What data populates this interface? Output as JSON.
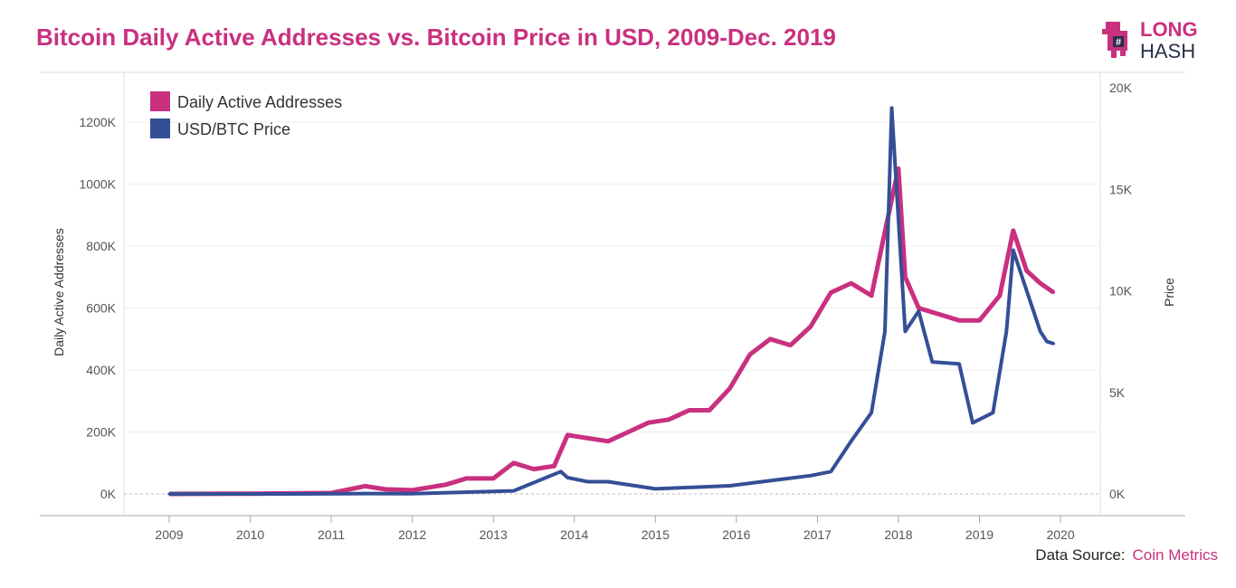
{
  "title": "Bitcoin Daily Active Addresses vs. Bitcoin Price in USD, 2009-Dec. 2019",
  "logo": {
    "line1": "LONG",
    "line2": "HASH"
  },
  "source": {
    "label": "Data Source:",
    "name": "Coin Metrics"
  },
  "colors": {
    "addresses": "#c9307f",
    "price": "#354f96",
    "title": "#c9307f"
  },
  "chart_data": {
    "type": "line",
    "ylabel": "Daily Active Addresses",
    "y2label": "Price",
    "xlim": [
      2009,
      2020
    ],
    "ylim": [
      0,
      1300
    ],
    "y2lim": [
      0,
      20000
    ],
    "x_ticks": [
      "2009",
      "2010",
      "2011",
      "2012",
      "2013",
      "2014",
      "2015",
      "2016",
      "2017",
      "2018",
      "2019",
      "2020"
    ],
    "y_ticks": [
      "0K",
      "200K",
      "400K",
      "600K",
      "800K",
      "1000K",
      "1200K"
    ],
    "y2_ticks": [
      "0K",
      "5K",
      "10K",
      "15K",
      "20K"
    ],
    "grid": true,
    "legend": "top-left",
    "series": [
      {
        "name": "Daily Active Addresses",
        "axis": "left",
        "unit": "K",
        "x": [
          "2009-01",
          "2010-01",
          "2011-01",
          "2011-06",
          "2011-09",
          "2012-01",
          "2012-06",
          "2012-09",
          "2013-01",
          "2013-04",
          "2013-07",
          "2013-10",
          "2013-12",
          "2014-03",
          "2014-06",
          "2014-09",
          "2014-12",
          "2015-03",
          "2015-06",
          "2015-09",
          "2015-12",
          "2016-03",
          "2016-06",
          "2016-09",
          "2016-12",
          "2017-03",
          "2017-06",
          "2017-09",
          "2017-12",
          "2018-01",
          "2018-02",
          "2018-04",
          "2018-07",
          "2018-10",
          "2019-01",
          "2019-04",
          "2019-06",
          "2019-08",
          "2019-10",
          "2019-12"
        ],
        "values": [
          0,
          1,
          3,
          25,
          15,
          12,
          30,
          50,
          50,
          100,
          80,
          90,
          190,
          180,
          170,
          200,
          230,
          240,
          270,
          270,
          340,
          450,
          500,
          480,
          540,
          650,
          680,
          640,
          950,
          1050,
          700,
          600,
          580,
          560,
          560,
          640,
          850,
          720,
          680,
          650
        ]
      },
      {
        "name": "USD/BTC Price",
        "axis": "right",
        "unit": "USD",
        "x": [
          "2009-01",
          "2010-07",
          "2011-06",
          "2012-01",
          "2013-04",
          "2013-11",
          "2013-12",
          "2014-03",
          "2014-06",
          "2015-01",
          "2015-12",
          "2016-06",
          "2016-12",
          "2017-03",
          "2017-06",
          "2017-09",
          "2017-11",
          "2017-12",
          "2018-02",
          "2018-04",
          "2018-06",
          "2018-10",
          "2018-12",
          "2019-03",
          "2019-05",
          "2019-06",
          "2019-08",
          "2019-10",
          "2019-11",
          "2019-12"
        ],
        "values": [
          0,
          0.1,
          20,
          10,
          150,
          1100,
          800,
          600,
          600,
          250,
          400,
          650,
          900,
          1100,
          2600,
          4000,
          8000,
          19000,
          8000,
          9000,
          6500,
          6400,
          3500,
          4000,
          8000,
          12000,
          10000,
          8000,
          7500,
          7400
        ]
      }
    ]
  }
}
